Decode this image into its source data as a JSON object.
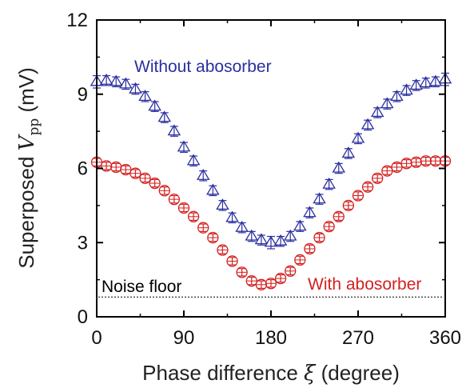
{
  "chart_data": {
    "type": "scatter",
    "x_axis": {
      "label_main": "Phase difference ",
      "label_var": "ξ",
      "label_unit": " (degree)",
      "range": [
        0,
        360
      ],
      "ticks": [
        0,
        90,
        180,
        270,
        360
      ],
      "tick_labels": [
        "0",
        "90",
        "180",
        "270",
        "360"
      ]
    },
    "y_axis": {
      "label_main": "Superposed ",
      "label_var": "V",
      "label_sub": "pp",
      "label_unit": " (mV)",
      "range": [
        0,
        12
      ],
      "ticks": [
        0,
        3,
        6,
        9,
        12
      ],
      "tick_labels": [
        "0",
        "3",
        "6",
        "9",
        "12"
      ]
    },
    "grid": false,
    "series": [
      {
        "name": "Without abosorber",
        "marker": "triangle-up-open",
        "color": "#2b2fa0",
        "x": [
          0,
          10,
          20,
          30,
          40,
          50,
          60,
          70,
          80,
          90,
          100,
          110,
          120,
          130,
          140,
          150,
          160,
          170,
          180,
          190,
          200,
          210,
          220,
          230,
          240,
          250,
          260,
          270,
          280,
          290,
          300,
          310,
          320,
          330,
          340,
          350,
          360
        ],
        "y": [
          9.5,
          9.55,
          9.5,
          9.4,
          9.2,
          8.9,
          8.5,
          8.05,
          7.5,
          6.85,
          6.3,
          5.7,
          5.1,
          4.5,
          4.0,
          3.6,
          3.25,
          3.1,
          3.0,
          3.05,
          3.25,
          3.65,
          4.2,
          4.75,
          5.35,
          6.0,
          6.6,
          7.2,
          7.75,
          8.25,
          8.6,
          8.9,
          9.15,
          9.35,
          9.45,
          9.5,
          9.6
        ],
        "err": [
          0.25,
          0.2,
          0.2,
          0.2,
          0.2,
          0.2,
          0.2,
          0.2,
          0.2,
          0.2,
          0.2,
          0.2,
          0.2,
          0.2,
          0.2,
          0.2,
          0.2,
          0.2,
          0.25,
          0.2,
          0.2,
          0.2,
          0.2,
          0.2,
          0.2,
          0.2,
          0.2,
          0.2,
          0.2,
          0.2,
          0.2,
          0.2,
          0.2,
          0.2,
          0.2,
          0.2,
          0.25
        ]
      },
      {
        "name": "With abosorber",
        "marker": "circle-plus-open",
        "color": "#d42020",
        "x": [
          0,
          10,
          20,
          30,
          40,
          50,
          60,
          70,
          80,
          90,
          100,
          110,
          120,
          130,
          140,
          150,
          160,
          170,
          180,
          190,
          200,
          210,
          220,
          230,
          240,
          250,
          260,
          270,
          280,
          290,
          300,
          310,
          320,
          330,
          340,
          350,
          360
        ],
        "y": [
          6.25,
          6.1,
          6.05,
          5.95,
          5.8,
          5.6,
          5.4,
          5.1,
          4.75,
          4.4,
          4.05,
          3.6,
          3.2,
          2.7,
          2.25,
          1.8,
          1.45,
          1.3,
          1.35,
          1.55,
          1.85,
          2.3,
          2.75,
          3.2,
          3.65,
          4.05,
          4.5,
          4.9,
          5.25,
          5.6,
          5.9,
          6.05,
          6.2,
          6.25,
          6.3,
          6.3,
          6.3
        ],
        "err": [
          0.15,
          0.15,
          0.15,
          0.15,
          0.15,
          0.15,
          0.15,
          0.15,
          0.15,
          0.15,
          0.15,
          0.15,
          0.15,
          0.15,
          0.15,
          0.15,
          0.15,
          0.15,
          0.15,
          0.15,
          0.15,
          0.15,
          0.15,
          0.15,
          0.15,
          0.15,
          0.15,
          0.15,
          0.15,
          0.15,
          0.15,
          0.15,
          0.15,
          0.15,
          0.15,
          0.15,
          0.15
        ]
      }
    ],
    "reference_lines": [
      {
        "label": "Noise floor",
        "y": 0.8,
        "style": "dotted",
        "color": "#000000"
      }
    ],
    "annotations": [
      {
        "text": "Without abosorber",
        "series": 0,
        "color": "#2b2fa0"
      },
      {
        "text": "With abosorber",
        "series": 1,
        "color": "#d42020"
      },
      {
        "text": "Noise floor",
        "color": "#000000"
      }
    ]
  }
}
